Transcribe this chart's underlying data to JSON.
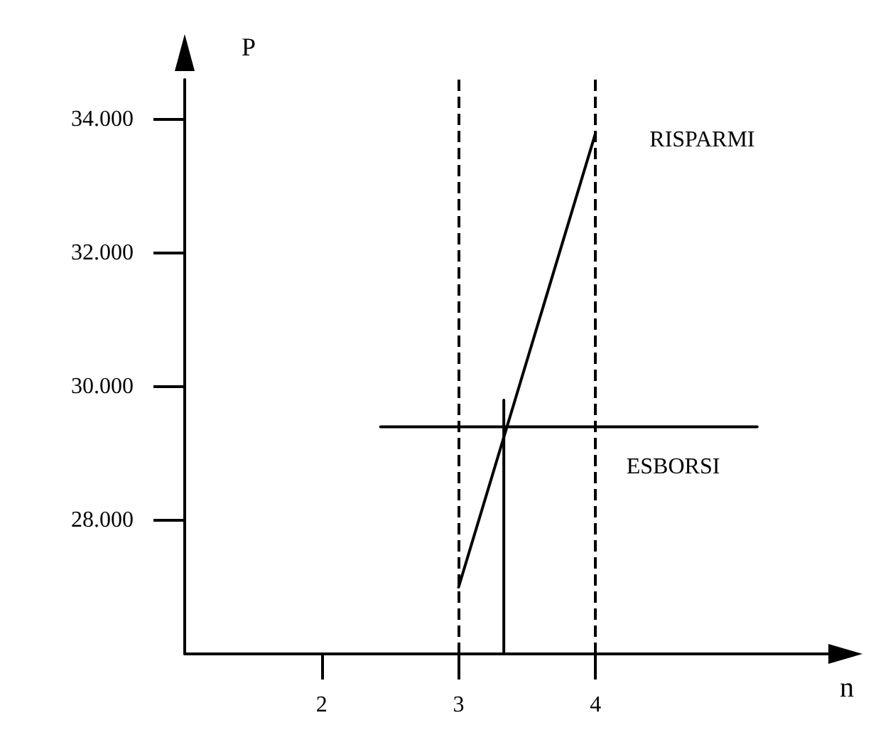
{
  "chart_data": {
    "type": "line",
    "xlabel": "n",
    "ylabel": "P",
    "xlim": [
      1,
      5.7
    ],
    "ylim": [
      26000,
      34600
    ],
    "xticks": [
      2,
      3,
      4
    ],
    "yticks": [
      {
        "value": 28000,
        "label": "28.000"
      },
      {
        "value": 30000,
        "label": "30.000"
      },
      {
        "value": 32000,
        "label": "32.000"
      },
      {
        "value": 34000,
        "label": "34.000"
      }
    ],
    "series": [
      {
        "name": "RISPARMI",
        "color": "#000000",
        "x": [
          3,
          4
        ],
        "values": [
          27000,
          33800
        ]
      },
      {
        "name": "ESBORSI",
        "color": "#000000",
        "x": [
          2.43,
          5.18
        ],
        "values": [
          29400,
          29400
        ]
      },
      {
        "color": "#000000",
        "x": [
          3.33,
          3.33
        ],
        "values": [
          26000,
          29800
        ]
      }
    ],
    "ref_lines": [
      {
        "axis": "x",
        "value": 3,
        "color": "#000000",
        "line_style": "dashed"
      },
      {
        "axis": "x",
        "value": 4,
        "color": "#000000",
        "line_style": "dashed"
      }
    ],
    "grid": false,
    "legend": false,
    "marker": "none",
    "line_style": "solid"
  }
}
